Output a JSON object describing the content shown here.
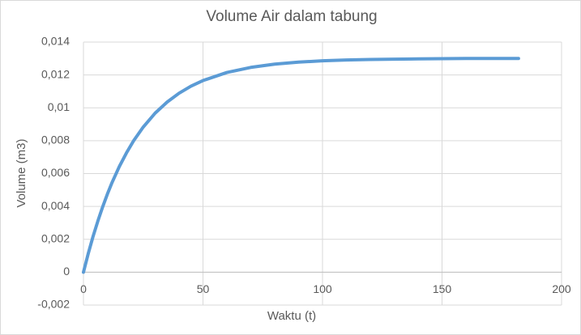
{
  "chart_data": {
    "type": "scatter-line",
    "title": "Volume Air dalam tabung",
    "x_label": "Waktu (t)",
    "y_label": "Volume (m3)",
    "series": [
      {
        "color": "#5b9bd5",
        "x": [
          0,
          2,
          4,
          6,
          8,
          10,
          12,
          15,
          18,
          21,
          25,
          30,
          35,
          40,
          45,
          50,
          60,
          70,
          80,
          90,
          100,
          110,
          120,
          130,
          140,
          150,
          160,
          170,
          182
        ],
        "values": [
          0,
          0.00113,
          0.00217,
          0.0031,
          0.00396,
          0.00475,
          0.00547,
          0.00643,
          0.00726,
          0.008,
          0.00883,
          0.00968,
          0.01035,
          0.01089,
          0.01132,
          0.01166,
          0.01215,
          0.01246,
          0.01266,
          0.01278,
          0.01286,
          0.01291,
          0.01294,
          0.01296,
          0.01298,
          0.01299,
          0.013,
          0.013,
          0.013
        ]
      }
    ],
    "xlim": [
      0,
      200
    ],
    "xticks": [
      0,
      50,
      100,
      150,
      200
    ],
    "ylim": [
      -0.002,
      0.014
    ],
    "yticks": [
      {
        "value": -0.002,
        "label": "-0,002"
      },
      0,
      {
        "value": 0.002,
        "label": "0,002"
      },
      {
        "value": 0.004,
        "label": "0,004"
      },
      {
        "value": 0.006,
        "label": "0,006"
      },
      {
        "value": 0.008,
        "label": "0,008"
      },
      {
        "value": 0.01,
        "label": "0,01"
      },
      {
        "value": 0.012,
        "label": "0,012"
      },
      {
        "value": 0.014,
        "label": "0,014"
      }
    ],
    "grid": true
  }
}
